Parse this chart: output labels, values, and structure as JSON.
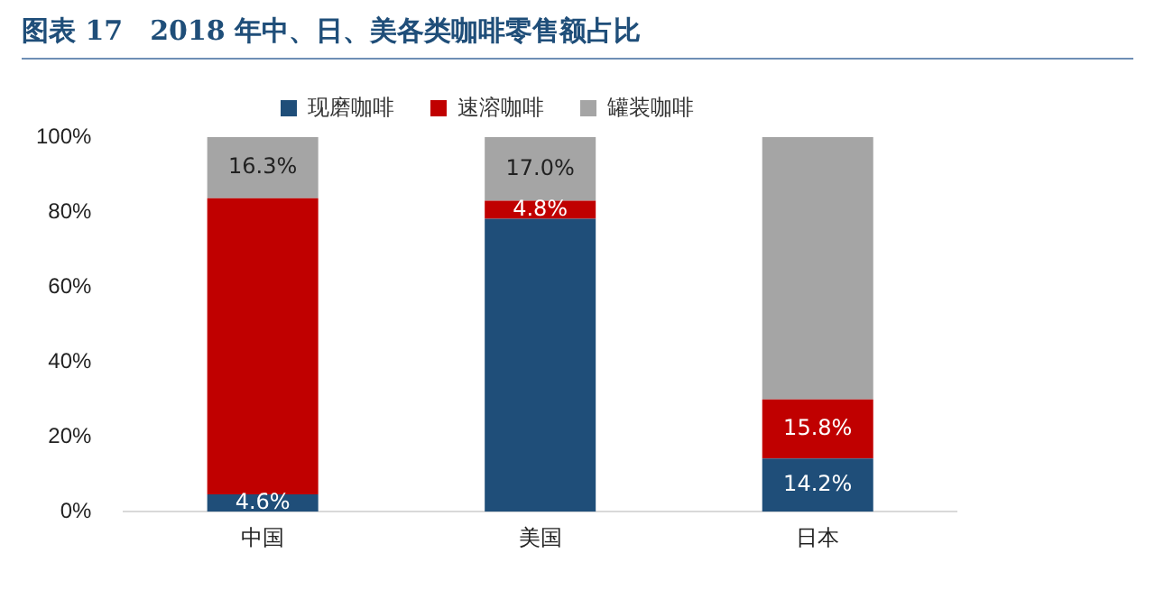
{
  "chart_data": {
    "type": "bar",
    "title": "图表 17　2018 年中、日、美各类咖啡零售额占比",
    "categories": [
      "中国",
      "美国",
      "日本"
    ],
    "stacked": true,
    "legend": "top",
    "series": [
      {
        "name": "现磨咖啡",
        "color": "#1f4e79",
        "values": [
          4.6,
          78.2,
          14.2
        ],
        "value_labels": [
          "4.6%",
          null,
          "14.2%"
        ]
      },
      {
        "name": "速溶咖啡",
        "color": "#c00000",
        "values": [
          79.1,
          4.8,
          15.8
        ],
        "value_labels": [
          null,
          "4.8%",
          "15.8%"
        ]
      },
      {
        "name": "罐装咖啡",
        "color": "#a5a5a5",
        "values": [
          16.3,
          17.0,
          70.0
        ],
        "value_labels": [
          "16.3%",
          "17.0%",
          null
        ]
      }
    ],
    "ylim": [
      0,
      100
    ],
    "yticks": [
      {
        "value": 0,
        "label": "0%"
      },
      {
        "value": 20,
        "label": "20%"
      },
      {
        "value": 40,
        "label": "40%"
      },
      {
        "value": 60,
        "label": "60%"
      },
      {
        "value": 80,
        "label": "80%"
      },
      {
        "value": 100,
        "label": "100%"
      }
    ],
    "grid": false
  }
}
